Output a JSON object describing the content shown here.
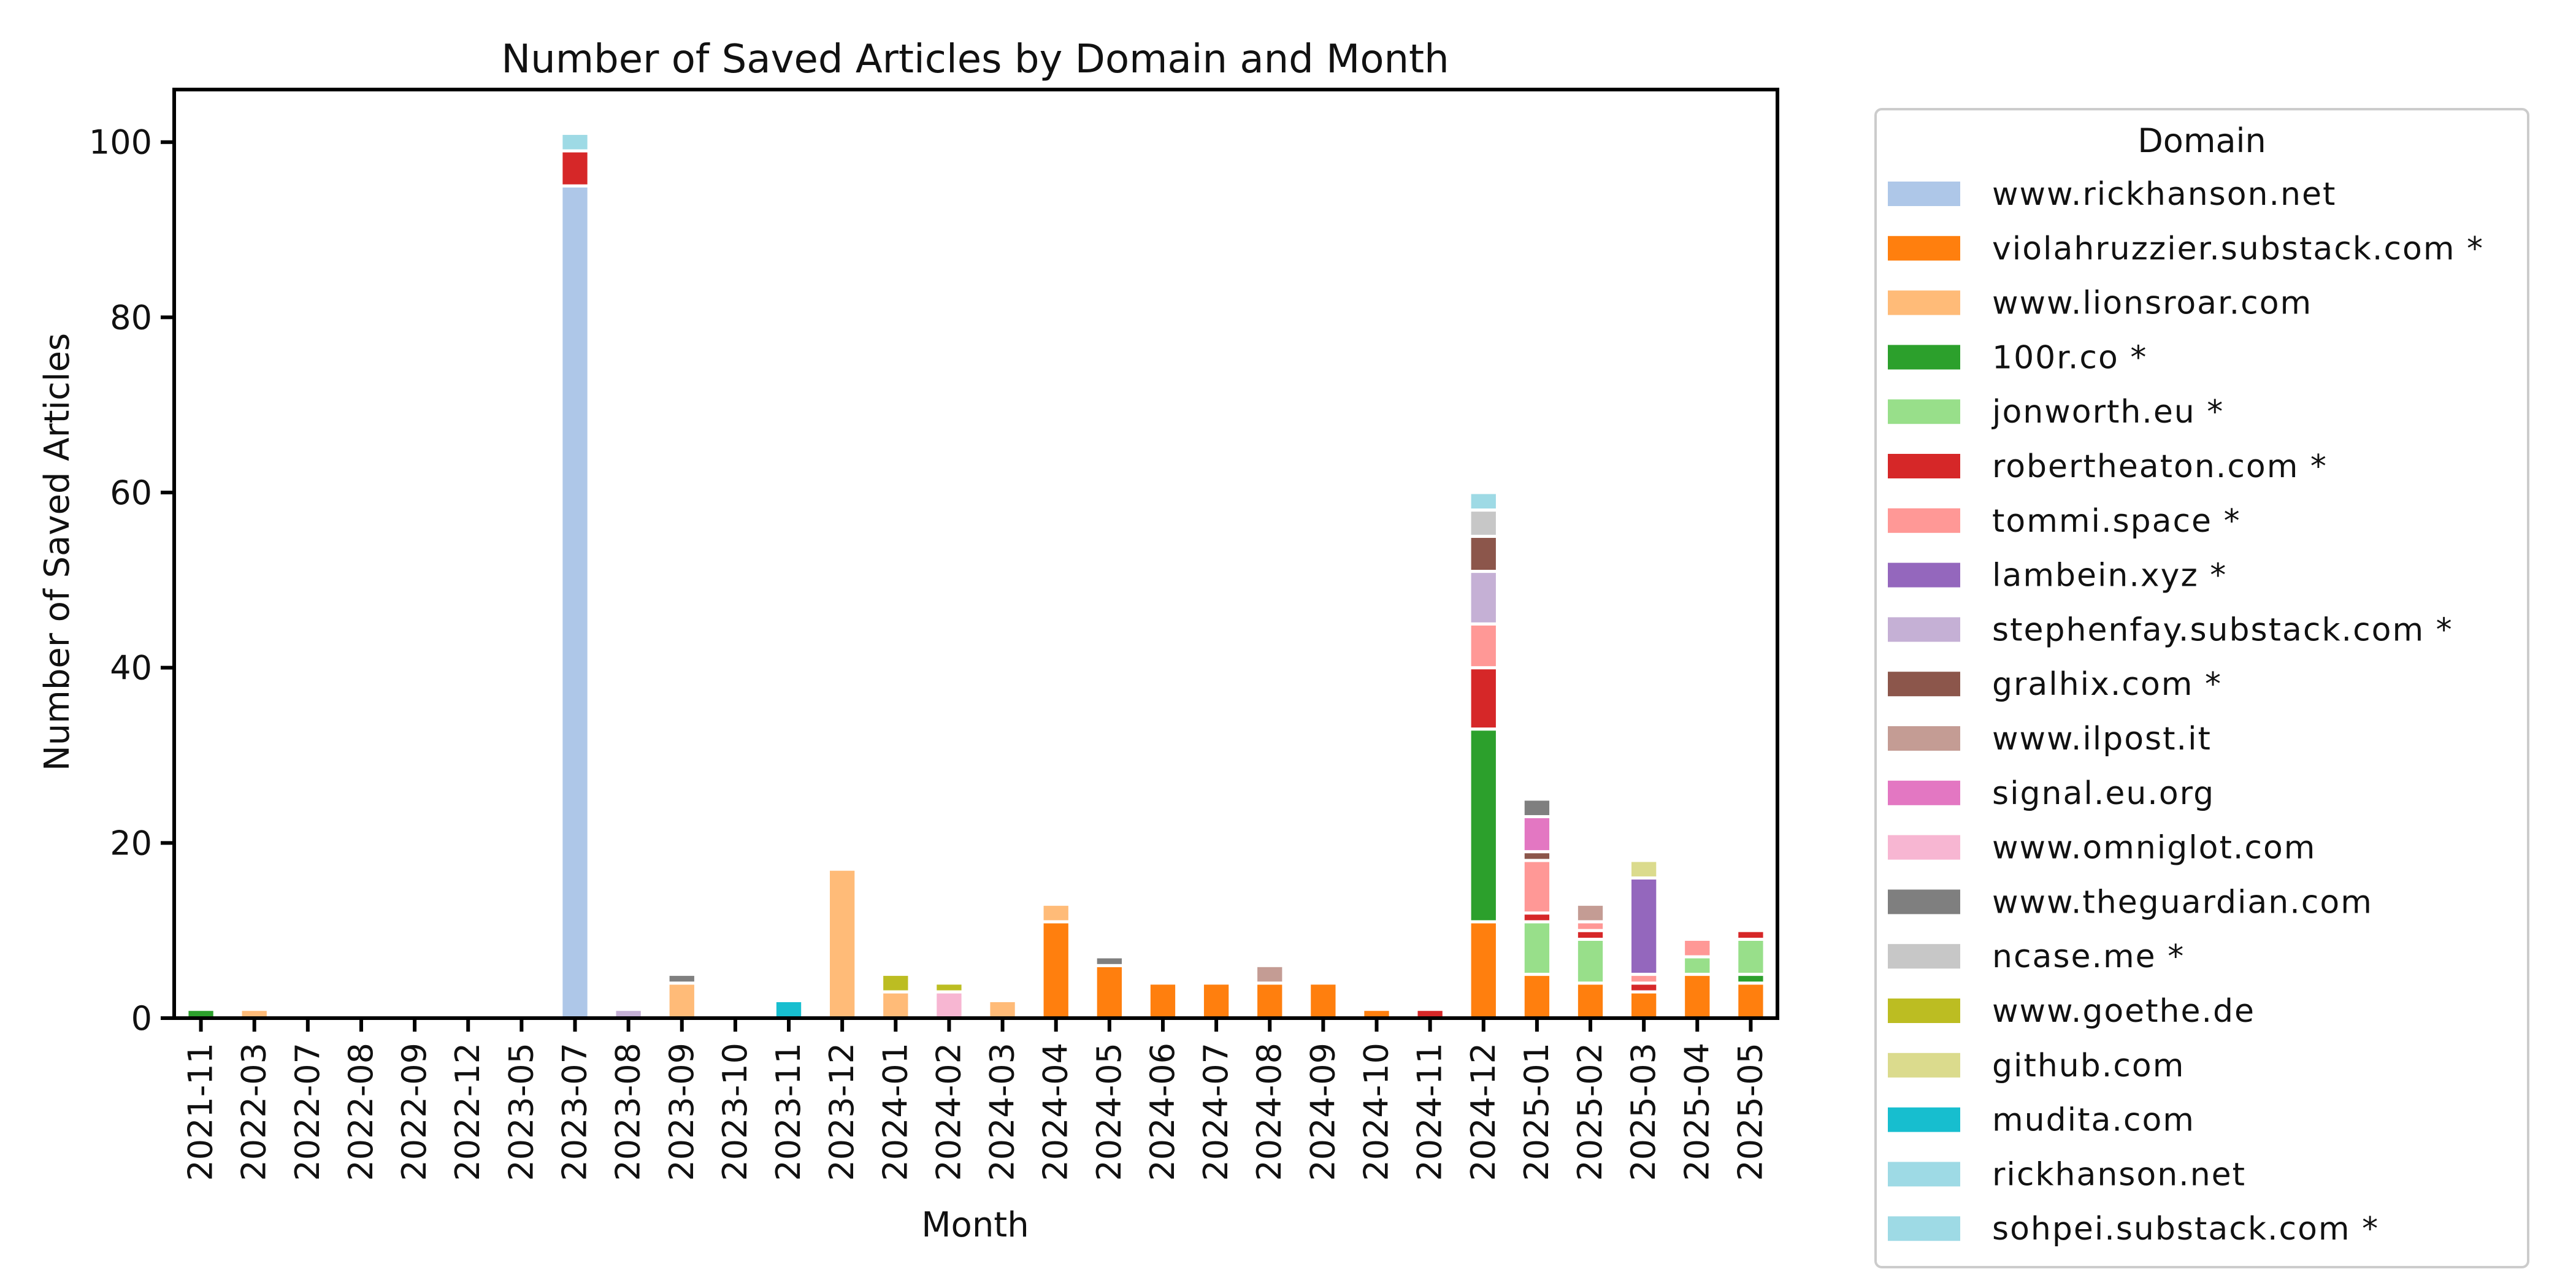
{
  "chart_data": {
    "type": "bar",
    "stacked": true,
    "title": "Number of Saved Articles by Domain and Month",
    "xlabel": "Month",
    "ylabel": "Number of Saved Articles",
    "ylim": [
      0,
      106
    ],
    "yticks": [
      0,
      20,
      40,
      60,
      80,
      100
    ],
    "grid": false,
    "legend_title": "Domain",
    "legend_position": "right-outside",
    "categories": [
      "2021-11",
      "2022-03",
      "2022-07",
      "2022-08",
      "2022-09",
      "2022-12",
      "2023-05",
      "2023-07",
      "2023-08",
      "2023-09",
      "2023-10",
      "2023-11",
      "2023-12",
      "2024-01",
      "2024-02",
      "2024-03",
      "2024-04",
      "2024-05",
      "2024-06",
      "2024-07",
      "2024-08",
      "2024-09",
      "2024-10",
      "2024-11",
      "2024-12",
      "2025-01",
      "2025-02",
      "2025-03",
      "2025-04",
      "2025-05"
    ],
    "series": [
      {
        "name": "www.rickhanson.net",
        "color": "#aec7e8",
        "values": [
          0,
          0,
          0,
          0,
          0,
          0,
          0,
          95,
          0,
          0,
          0,
          0,
          0,
          0,
          0,
          0,
          0,
          0,
          0,
          0,
          0,
          0,
          0,
          0,
          0,
          0,
          0,
          0,
          0,
          0
        ]
      },
      {
        "name": "violahruzzier.substack.com *",
        "color": "#ff7f0e",
        "values": [
          0,
          0,
          0,
          0,
          0,
          0,
          0,
          0,
          0,
          0,
          0,
          0,
          0,
          0,
          0,
          0,
          11,
          6,
          4,
          4,
          4,
          4,
          1,
          0,
          11,
          5,
          4,
          3,
          5,
          4
        ]
      },
      {
        "name": "www.lionsroar.com",
        "color": "#ffbb78",
        "values": [
          0,
          1,
          0,
          0,
          0,
          0,
          0,
          0,
          0,
          4,
          0,
          0,
          17,
          3,
          0,
          2,
          2,
          0,
          0,
          0,
          0,
          0,
          0,
          0,
          0,
          0,
          0,
          0,
          0,
          0
        ]
      },
      {
        "name": "100r.co *",
        "color": "#2ca02c",
        "values": [
          1,
          0,
          0,
          0,
          0,
          0,
          0,
          0,
          0,
          0,
          0,
          0,
          0,
          0,
          0,
          0,
          0,
          0,
          0,
          0,
          0,
          0,
          0,
          0,
          22,
          0,
          0,
          0,
          0,
          1
        ]
      },
      {
        "name": "jonworth.eu *",
        "color": "#98df8a",
        "values": [
          0,
          0,
          0,
          0,
          0,
          0,
          0,
          0,
          0,
          0,
          0,
          0,
          0,
          0,
          0,
          0,
          0,
          0,
          0,
          0,
          0,
          0,
          0,
          0,
          0,
          6,
          5,
          0,
          2,
          4
        ]
      },
      {
        "name": "robertheaton.com *",
        "color": "#d62728",
        "values": [
          0,
          0,
          0,
          0,
          0,
          0,
          0,
          4,
          0,
          0,
          0,
          0,
          0,
          0,
          0,
          0,
          0,
          0,
          0,
          0,
          0,
          0,
          0,
          1,
          7,
          1,
          1,
          1,
          0,
          1
        ]
      },
      {
        "name": "tommi.space *",
        "color": "#ff9896",
        "values": [
          0,
          0,
          0,
          0,
          0,
          0,
          0,
          0,
          0,
          0,
          0,
          0,
          0,
          0,
          0,
          0,
          0,
          0,
          0,
          0,
          0,
          0,
          0,
          0,
          5,
          6,
          1,
          1,
          2,
          0
        ]
      },
      {
        "name": "lambein.xyz *",
        "color": "#9467bd",
        "values": [
          0,
          0,
          0,
          0,
          0,
          0,
          0,
          0,
          0,
          0,
          0,
          0,
          0,
          0,
          0,
          0,
          0,
          0,
          0,
          0,
          0,
          0,
          0,
          0,
          0,
          0,
          0,
          11,
          0,
          0
        ]
      },
      {
        "name": "stephenfay.substack.com *",
        "color": "#c5b0d5",
        "values": [
          0,
          0,
          0,
          0,
          0,
          0,
          0,
          0,
          1,
          0,
          0,
          0,
          0,
          0,
          0,
          0,
          0,
          0,
          0,
          0,
          0,
          0,
          0,
          0,
          6,
          0,
          0,
          0,
          0,
          0
        ]
      },
      {
        "name": "gralhix.com *",
        "color": "#8c564b",
        "values": [
          0,
          0,
          0,
          0,
          0,
          0,
          0,
          0,
          0,
          0,
          0,
          0,
          0,
          0,
          0,
          0,
          0,
          0,
          0,
          0,
          0,
          0,
          0,
          0,
          4,
          1,
          0,
          0,
          0,
          0
        ]
      },
      {
        "name": "www.ilpost.it",
        "color": "#c49c94",
        "values": [
          0,
          0,
          0,
          0,
          0,
          0,
          0,
          0,
          0,
          0,
          0,
          0,
          0,
          0,
          0,
          0,
          0,
          0,
          0,
          0,
          2,
          0,
          0,
          0,
          0,
          0,
          2,
          0,
          0,
          0
        ]
      },
      {
        "name": "signal.eu.org",
        "color": "#e377c2",
        "values": [
          0,
          0,
          0,
          0,
          0,
          0,
          0,
          0,
          0,
          0,
          0,
          0,
          0,
          0,
          0,
          0,
          0,
          0,
          0,
          0,
          0,
          0,
          0,
          0,
          0,
          4,
          0,
          0,
          0,
          0
        ]
      },
      {
        "name": "www.omniglot.com",
        "color": "#f7b6d2",
        "values": [
          0,
          0,
          0,
          0,
          0,
          0,
          0,
          0,
          0,
          0,
          0,
          0,
          0,
          0,
          3,
          0,
          0,
          0,
          0,
          0,
          0,
          0,
          0,
          0,
          0,
          0,
          0,
          0,
          0,
          0
        ]
      },
      {
        "name": "www.theguardian.com",
        "color": "#7f7f7f",
        "values": [
          0,
          0,
          0,
          0,
          0,
          0,
          0,
          0,
          0,
          1,
          0,
          0,
          0,
          0,
          0,
          0,
          0,
          1,
          0,
          0,
          0,
          0,
          0,
          0,
          0,
          2,
          0,
          0,
          0,
          0
        ]
      },
      {
        "name": "ncase.me *",
        "color": "#c7c7c7",
        "values": [
          0,
          0,
          0,
          0,
          0,
          0,
          0,
          0,
          0,
          0,
          0,
          0,
          0,
          0,
          0,
          0,
          0,
          0,
          0,
          0,
          0,
          0,
          0,
          0,
          3,
          0,
          0,
          0,
          0,
          0
        ]
      },
      {
        "name": "www.goethe.de",
        "color": "#bcbd22",
        "values": [
          0,
          0,
          0,
          0,
          0,
          0,
          0,
          0,
          0,
          0,
          0,
          0,
          0,
          2,
          1,
          0,
          0,
          0,
          0,
          0,
          0,
          0,
          0,
          0,
          0,
          0,
          0,
          0,
          0,
          0
        ]
      },
      {
        "name": "github.com",
        "color": "#dbdb8d",
        "values": [
          0,
          0,
          0,
          0,
          0,
          0,
          0,
          0,
          0,
          0,
          0,
          0,
          0,
          0,
          0,
          0,
          0,
          0,
          0,
          0,
          0,
          0,
          0,
          0,
          0,
          0,
          0,
          2,
          0,
          0
        ]
      },
      {
        "name": "mudita.com",
        "color": "#17becf",
        "values": [
          0,
          0,
          0,
          0,
          0,
          0,
          0,
          0,
          0,
          0,
          0,
          2,
          0,
          0,
          0,
          0,
          0,
          0,
          0,
          0,
          0,
          0,
          0,
          0,
          0,
          0,
          0,
          0,
          0,
          0
        ]
      },
      {
        "name": "rickhanson.net",
        "color": "#9edae5",
        "values": [
          0,
          0,
          0,
          0,
          0,
          0,
          0,
          2,
          0,
          0,
          0,
          0,
          0,
          0,
          0,
          0,
          0,
          0,
          0,
          0,
          0,
          0,
          0,
          0,
          0,
          0,
          0,
          0,
          0,
          0
        ]
      },
      {
        "name": "sohpei.substack.com *",
        "color": "#9edae5",
        "values": [
          0,
          0,
          0,
          0,
          0,
          0,
          0,
          0,
          0,
          0,
          0,
          0,
          0,
          0,
          0,
          0,
          0,
          0,
          0,
          0,
          0,
          0,
          0,
          0,
          2,
          0,
          0,
          0,
          0,
          0
        ]
      }
    ]
  }
}
